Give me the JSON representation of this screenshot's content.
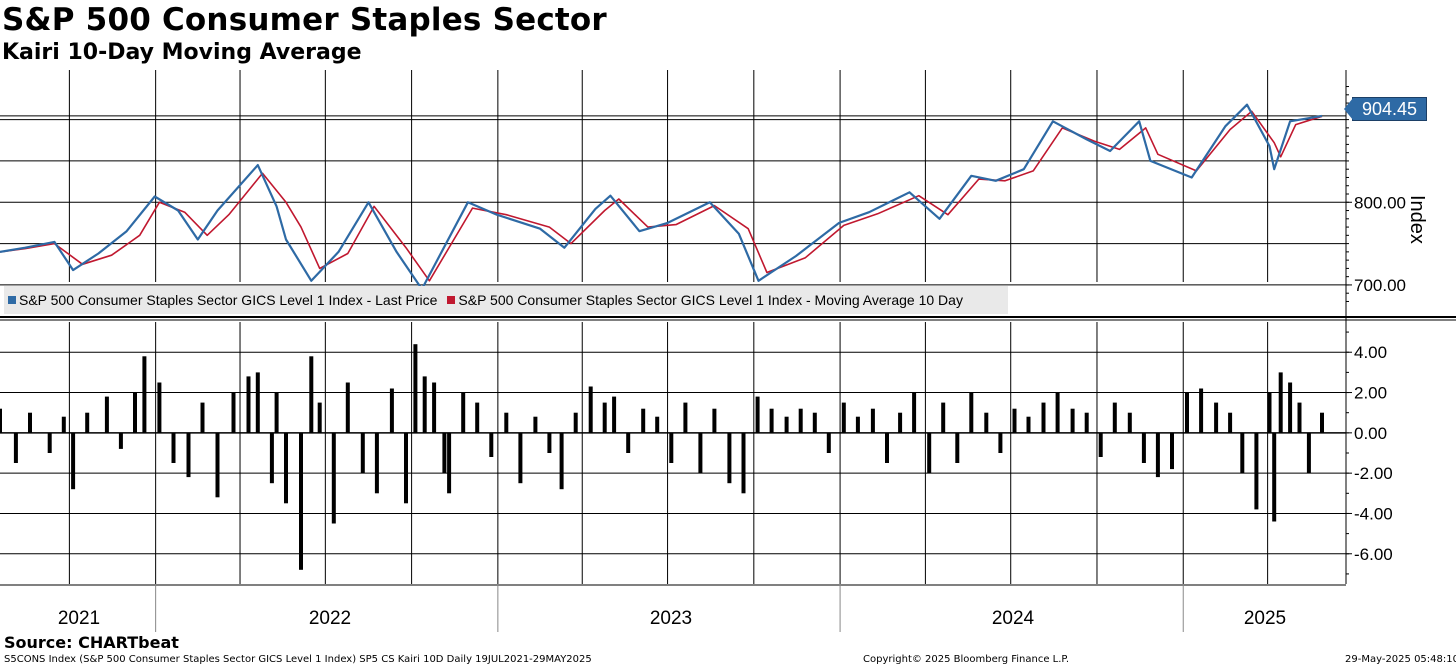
{
  "header": {
    "title": "S&P 500 Consumer Staples Sector",
    "subtitle": "Kairi 10-Day Moving Average"
  },
  "legend": {
    "items": [
      {
        "label": "S&P 500 Consumer Staples Sector GICS Level 1 Index - Last Price",
        "color": "#2e6aa5"
      },
      {
        "label": "S&P 500 Consumer Staples Sector GICS Level 1 Index - Moving Average 10 Day",
        "color": "#c0182f"
      }
    ]
  },
  "last_value_label": "904.45",
  "y_axis_title": "Index",
  "source": "Source: CHARTbeat",
  "footer": {
    "left": "S5CONS Index (S&P 500 Consumer Staples Sector GICS Level 1 Index) SP5 CS Kairi 10D  Daily 19JUL2021-29MAY2025",
    "center": "Copyright© 2025 Bloomberg Finance L.P.",
    "right": "29-May-2025 05:48:10"
  },
  "colors": {
    "price_line": "#2e6aa5",
    "ma_line": "#c0182f",
    "kairi_bars": "#000000",
    "legend_bg": "#e9e9e9"
  },
  "chart_data": [
    {
      "type": "line",
      "panel": "price",
      "date_range": [
        "2021-07-19",
        "2025-05-29"
      ],
      "ylim": [
        660,
        960
      ],
      "y_ticks": [
        "700.00",
        "800.00"
      ],
      "y_tick_values": [
        700,
        800
      ],
      "x_tick_labels": [
        "2021",
        "2022",
        "2023",
        "2024",
        "2025"
      ],
      "grid": true,
      "legend_position": "bottom-left",
      "series": [
        {
          "name": "S&P 500 Consumer Staples Sector GICS Level 1 Index - Last Price",
          "x": [
            "2021-07-19",
            "2021-08-15",
            "2021-09-15",
            "2021-10-05",
            "2021-11-01",
            "2021-12-01",
            "2021-12-31",
            "2022-01-25",
            "2022-02-15",
            "2022-03-08",
            "2022-04-20",
            "2022-05-10",
            "2022-05-20",
            "2022-06-16",
            "2022-07-15",
            "2022-08-16",
            "2022-09-15",
            "2022-10-12",
            "2022-11-30",
            "2022-12-31",
            "2023-02-15",
            "2023-03-13",
            "2023-04-15",
            "2023-05-01",
            "2023-06-01",
            "2023-07-01",
            "2023-08-15",
            "2023-09-15",
            "2023-10-06",
            "2023-11-15",
            "2023-12-31",
            "2024-02-01",
            "2024-03-15",
            "2024-04-16",
            "2024-05-20",
            "2024-06-15",
            "2024-07-15",
            "2024-08-15",
            "2024-09-20",
            "2024-10-15",
            "2024-11-15",
            "2024-11-27",
            "2025-01-10",
            "2025-02-15",
            "2025-03-10",
            "2025-04-03",
            "2025-04-08",
            "2025-04-25",
            "2025-05-29"
          ],
          "values": [
            740,
            745,
            752,
            718,
            738,
            765,
            807,
            790,
            755,
            790,
            845,
            795,
            755,
            705,
            740,
            800,
            740,
            695,
            800,
            785,
            768,
            745,
            792,
            808,
            765,
            775,
            800,
            762,
            705,
            735,
            775,
            788,
            812,
            780,
            832,
            826,
            840,
            898,
            876,
            862,
            898,
            850,
            830,
            892,
            918,
            868,
            840,
            898,
            904.45
          ]
        },
        {
          "name": "S&P 500 Consumer Staples Sector GICS Level 1 Index - Moving Average 10 Day",
          "x": [
            "2021-07-19",
            "2021-08-15",
            "2021-09-15",
            "2021-10-15",
            "2021-11-15",
            "2021-12-15",
            "2022-01-05",
            "2022-02-01",
            "2022-02-25",
            "2022-03-20",
            "2022-04-25",
            "2022-05-20",
            "2022-06-05",
            "2022-06-25",
            "2022-07-25",
            "2022-08-22",
            "2022-09-25",
            "2022-10-20",
            "2022-12-05",
            "2023-01-10",
            "2023-02-25",
            "2023-03-20",
            "2023-04-25",
            "2023-05-10",
            "2023-06-10",
            "2023-07-10",
            "2023-08-20",
            "2023-09-25",
            "2023-10-15",
            "2023-11-25",
            "2024-01-05",
            "2024-02-10",
            "2024-03-25",
            "2024-04-25",
            "2024-05-28",
            "2024-06-25",
            "2024-07-25",
            "2024-08-25",
            "2024-09-28",
            "2024-10-25",
            "2024-11-22",
            "2024-12-05",
            "2025-01-15",
            "2025-02-20",
            "2025-03-15",
            "2025-04-08",
            "2025-04-15",
            "2025-05-01",
            "2025-05-29"
          ],
          "values": [
            740,
            744,
            750,
            725,
            736,
            760,
            800,
            788,
            760,
            785,
            835,
            800,
            770,
            720,
            738,
            795,
            745,
            705,
            793,
            785,
            770,
            750,
            790,
            804,
            770,
            773,
            796,
            768,
            715,
            733,
            772,
            786,
            808,
            785,
            828,
            826,
            838,
            890,
            874,
            864,
            890,
            858,
            838,
            888,
            910,
            872,
            855,
            894,
            904
          ]
        }
      ]
    },
    {
      "type": "bar",
      "panel": "kairi",
      "ylim": [
        -7.5,
        5.5
      ],
      "y_ticks": [
        "4.00",
        "2.00",
        "0.00",
        "-2.00",
        "-4.00",
        "-6.00"
      ],
      "y_tick_values": [
        4,
        2,
        0,
        -2,
        -4,
        -6
      ],
      "x_tick_labels": [
        "2021",
        "2022",
        "2023",
        "2024",
        "2025"
      ],
      "grid": true,
      "series": [
        {
          "name": "SP5 CS Kairi 10D",
          "x": [
            "2021-07-19",
            "2021-08-05",
            "2021-08-20",
            "2021-09-10",
            "2021-09-25",
            "2021-10-05",
            "2021-10-20",
            "2021-11-10",
            "2021-11-25",
            "2021-12-10",
            "2021-12-20",
            "2022-01-05",
            "2022-01-20",
            "2022-02-05",
            "2022-02-20",
            "2022-03-08",
            "2022-03-25",
            "2022-04-10",
            "2022-04-20",
            "2022-05-05",
            "2022-05-10",
            "2022-05-20",
            "2022-06-05",
            "2022-06-16",
            "2022-06-25",
            "2022-07-10",
            "2022-07-25",
            "2022-08-10",
            "2022-08-25",
            "2022-09-10",
            "2022-09-25",
            "2022-10-05",
            "2022-10-15",
            "2022-10-25",
            "2022-11-05",
            "2022-11-10",
            "2022-11-25",
            "2022-12-10",
            "2022-12-25",
            "2023-01-10",
            "2023-01-25",
            "2023-02-10",
            "2023-02-25",
            "2023-03-10",
            "2023-03-25",
            "2023-04-10",
            "2023-04-25",
            "2023-05-05",
            "2023-05-20",
            "2023-06-05",
            "2023-06-20",
            "2023-07-05",
            "2023-07-20",
            "2023-08-05",
            "2023-08-20",
            "2023-09-05",
            "2023-09-20",
            "2023-10-05",
            "2023-10-20",
            "2023-11-05",
            "2023-11-20",
            "2023-12-05",
            "2023-12-20",
            "2024-01-05",
            "2024-01-20",
            "2024-02-05",
            "2024-02-20",
            "2024-03-05",
            "2024-03-20",
            "2024-04-05",
            "2024-04-20",
            "2024-05-05",
            "2024-05-20",
            "2024-06-05",
            "2024-06-20",
            "2024-07-05",
            "2024-07-20",
            "2024-08-05",
            "2024-08-20",
            "2024-09-05",
            "2024-09-20",
            "2024-10-05",
            "2024-10-20",
            "2024-11-05",
            "2024-11-20",
            "2024-12-05",
            "2024-12-20",
            "2025-01-05",
            "2025-01-20",
            "2025-02-05",
            "2025-02-20",
            "2025-03-05",
            "2025-03-20",
            "2025-04-03",
            "2025-04-08",
            "2025-04-15",
            "2025-04-25",
            "2025-05-05",
            "2025-05-15",
            "2025-05-29"
          ],
          "values": [
            1.2,
            -1.5,
            1.0,
            -1.0,
            0.8,
            -2.8,
            1.0,
            1.8,
            -0.8,
            2.0,
            3.8,
            2.5,
            -1.5,
            -2.2,
            1.5,
            -3.2,
            2.0,
            2.8,
            3.0,
            -2.5,
            2.0,
            -3.5,
            -6.8,
            3.8,
            1.5,
            -4.5,
            2.5,
            -2.0,
            -3.0,
            2.2,
            -3.5,
            4.4,
            2.8,
            2.5,
            -2.0,
            -3.0,
            2.0,
            1.5,
            -1.2,
            1.0,
            -2.5,
            0.8,
            -1.0,
            -2.8,
            1.0,
            2.3,
            1.5,
            1.8,
            -1.0,
            1.2,
            0.8,
            -1.5,
            1.5,
            -2.0,
            1.2,
            -2.5,
            -3.0,
            1.8,
            1.2,
            0.8,
            1.2,
            1.0,
            -1.0,
            1.5,
            0.8,
            1.2,
            -1.5,
            1.0,
            2.0,
            -2.0,
            1.5,
            -1.5,
            2.0,
            1.0,
            -1.0,
            1.2,
            0.8,
            1.5,
            2.0,
            1.2,
            1.0,
            -1.2,
            1.5,
            1.0,
            -1.5,
            -2.2,
            -1.8,
            2.0,
            2.2,
            1.5,
            1.0,
            -2.0,
            -3.8,
            2.0,
            -4.4,
            3.0,
            2.5,
            1.5,
            -2.0,
            1.0
          ]
        }
      ]
    }
  ]
}
